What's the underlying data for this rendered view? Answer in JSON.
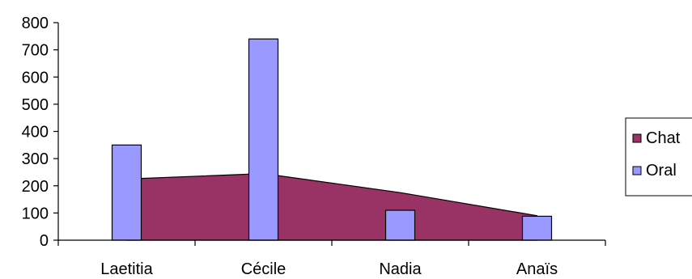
{
  "chart_data": {
    "type": "bar",
    "categories": [
      "Laetitia",
      "Cécile",
      "Nadia",
      "Anaïs"
    ],
    "ylim": [
      0,
      800
    ],
    "yticks": [
      0,
      100,
      200,
      300,
      400,
      500,
      600,
      700,
      800
    ],
    "yticks_labels": [
      "0",
      "100",
      "200",
      "300",
      "400",
      "500",
      "600",
      "700",
      "800"
    ],
    "grid": false,
    "legend_position": "right",
    "series": [
      {
        "name": "Chat",
        "type": "area",
        "values": [
          225,
          245,
          175,
          90
        ],
        "color": "#993366"
      },
      {
        "name": "Oral",
        "type": "bar",
        "values": [
          350,
          740,
          110,
          88
        ],
        "color": "#9999ff"
      }
    ]
  }
}
